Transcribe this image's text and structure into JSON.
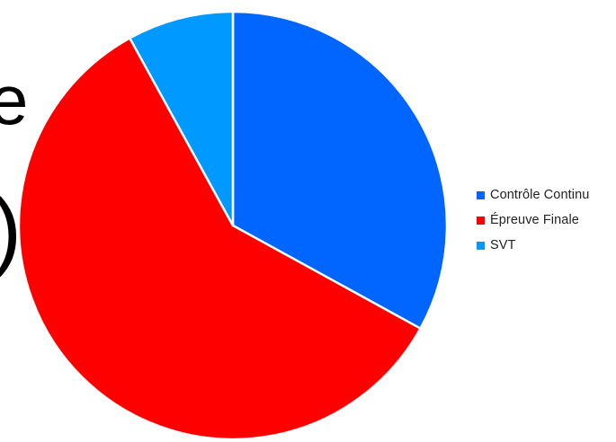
{
  "chart_data": {
    "type": "pie",
    "categories": [
      "Contrôle Continu",
      "Épreuve Finale",
      "SVT"
    ],
    "values": [
      33,
      59,
      8
    ],
    "colors": [
      "#0066FF",
      "#FF0000",
      "#0099FF"
    ],
    "slice_border_color": "#FFFFFF",
    "start_angle_deg": 0,
    "direction": "clockwise",
    "legend_position": "right",
    "title": ""
  },
  "background_text": {
    "glyph_top": "e",
    "glyph_bottom": ")"
  }
}
